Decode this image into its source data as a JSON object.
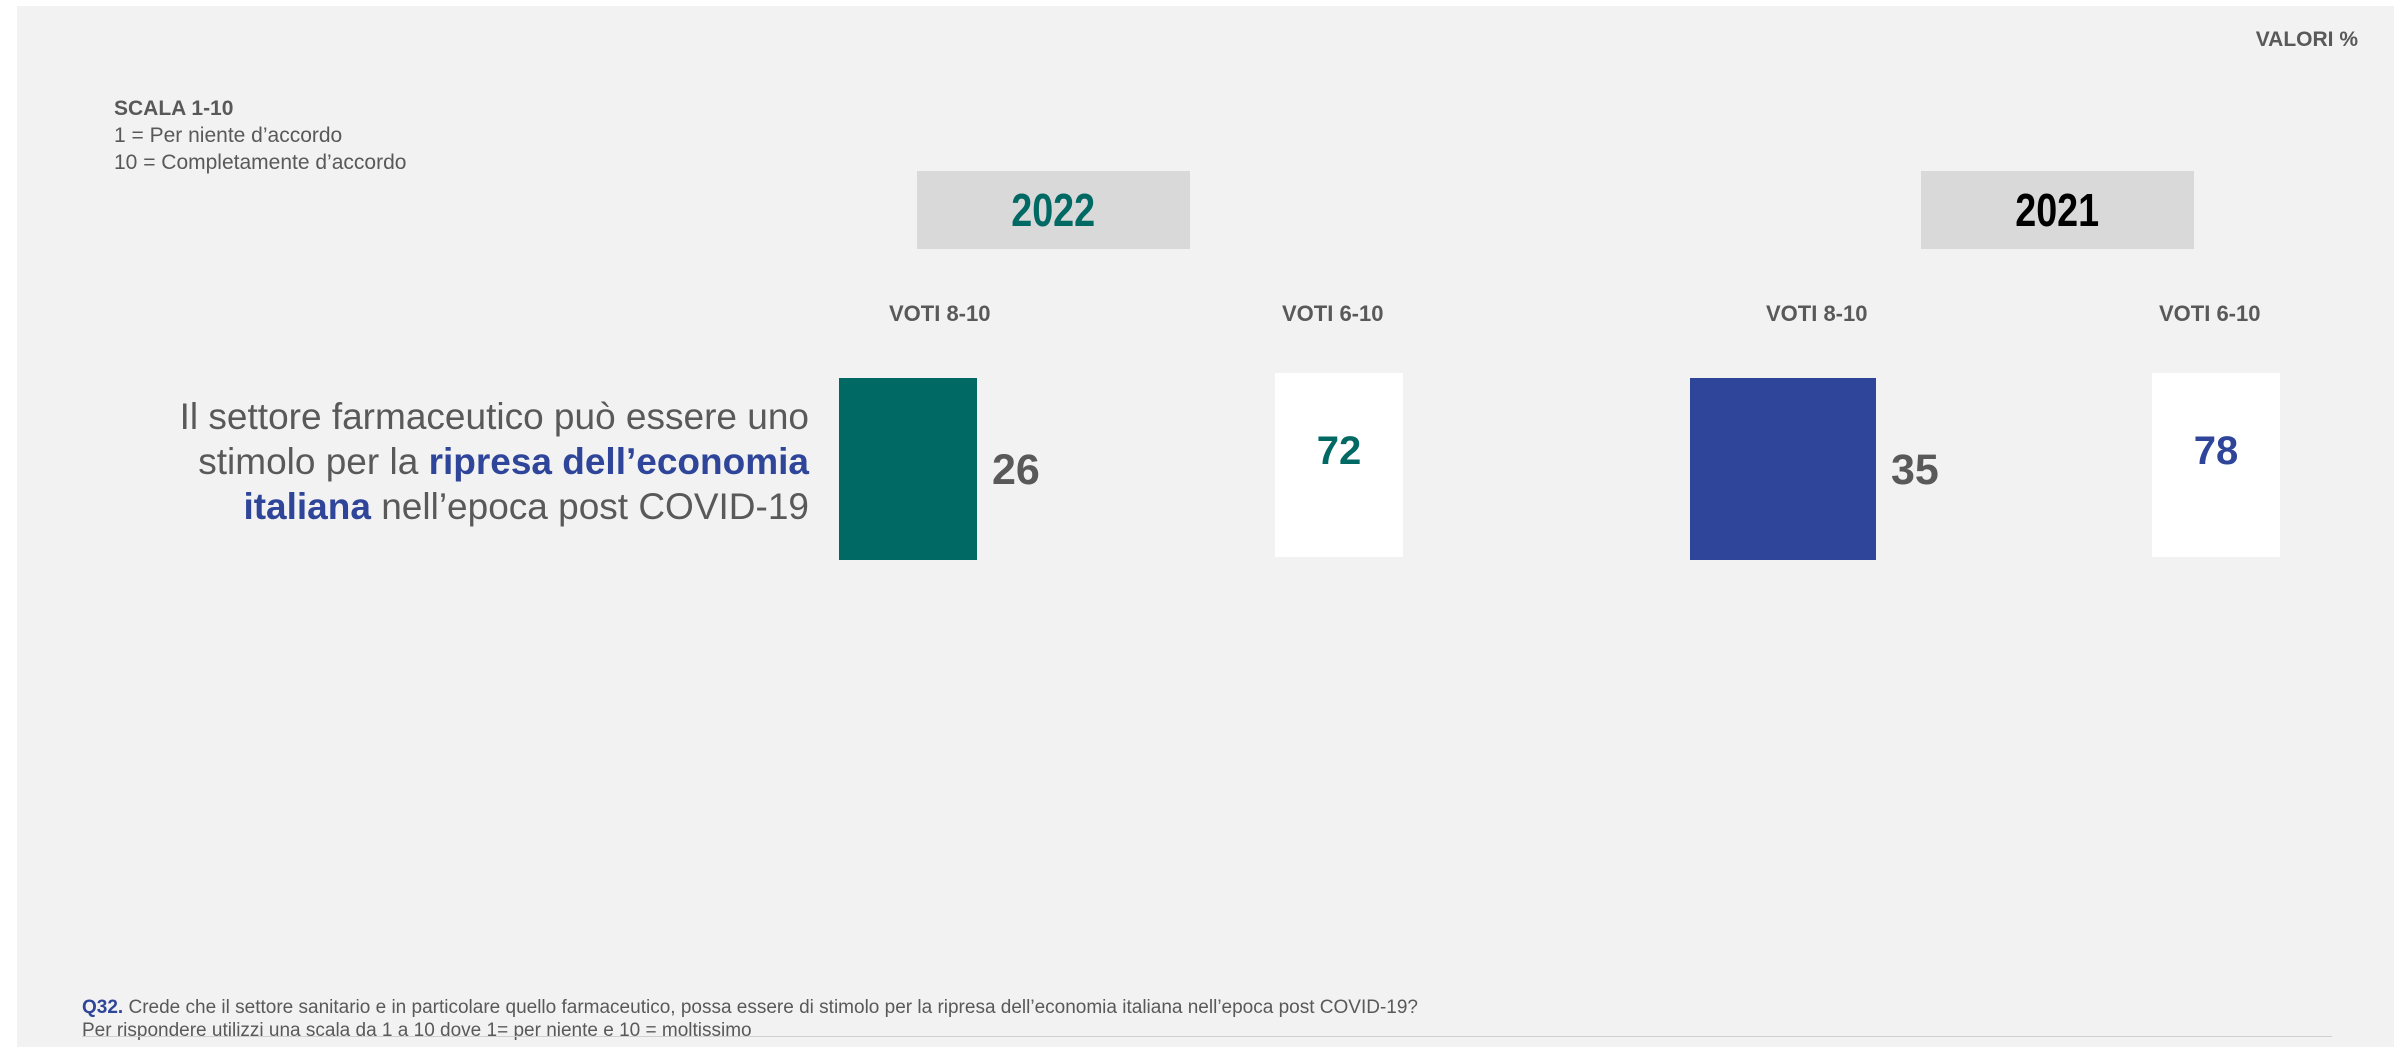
{
  "header": {
    "valori": "VALORI %"
  },
  "scale": {
    "title": "SCALA 1-10",
    "line1": "1 = Per niente d’accordo",
    "line2": "10 = Completamente d’accordo"
  },
  "statement": {
    "part1": "Il settore farmaceutico può essere uno stimolo per la ",
    "highlight": "ripresa dell’economia italiana",
    "part2": " nell’epoca post COVID-19"
  },
  "colors": {
    "teal": "#006964",
    "blue": "#2e4599",
    "grey_text": "#595959",
    "year2021_text": "#000000"
  },
  "chart_data": {
    "type": "bar",
    "groups": [
      {
        "year": "2022",
        "bar_header": "VOTI 8-10",
        "bar_value": 26,
        "box_header": "VOTI 6-10",
        "box_value": 72,
        "color": "#006964"
      },
      {
        "year": "2021",
        "bar_header": "VOTI 8-10",
        "bar_value": 35,
        "box_header": "VOTI 6-10",
        "box_value": 78,
        "color": "#2e4599"
      }
    ]
  },
  "footnote": {
    "q_label": "Q32.",
    "question": " Crede che il settore sanitario e in particolare quello farmaceutico, possa essere di stimolo per la ripresa dell’economia italiana nell’epoca post COVID-19?",
    "instruction": "Per rispondere utilizzi una scala da 1 a 10 dove 1= per niente e 10 = moltissimo"
  }
}
